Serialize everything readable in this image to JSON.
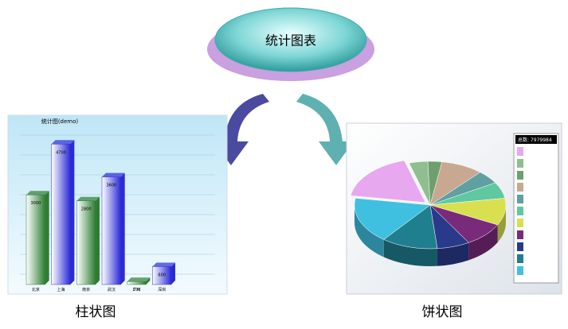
{
  "center": {
    "label": "统计图表"
  },
  "bar_panel": {
    "caption": "柱状图",
    "chart": {
      "type": "bar",
      "title": "统计图(demo)",
      "categories": [
        "北京",
        "上海",
        "南京",
        "武汉",
        "广州",
        "深圳"
      ],
      "values": [
        3000,
        4700,
        2800,
        3600,
        100,
        600
      ],
      "colors": [
        "#2e7d32",
        "#2b2bd6",
        "#2e7d32",
        "#2b2bd6",
        "#2e7d32",
        "#2b2bd6"
      ],
      "ylim": [
        0,
        5000
      ]
    }
  },
  "pie_panel": {
    "caption": "饼状图",
    "chart": {
      "type": "pie",
      "legend_title": "总数: 7979984",
      "values": [
        18,
        4,
        3,
        9,
        5,
        6,
        10,
        9,
        7,
        12,
        17
      ],
      "colors": [
        "#e8a8f0",
        "#8fbf8f",
        "#6f9f6f",
        "#c8a890",
        "#5fa0a0",
        "#60c8a0",
        "#d8e050",
        "#7a2a7a",
        "#2a3a8a",
        "#1f7f8f",
        "#40c0e0"
      ]
    }
  }
}
